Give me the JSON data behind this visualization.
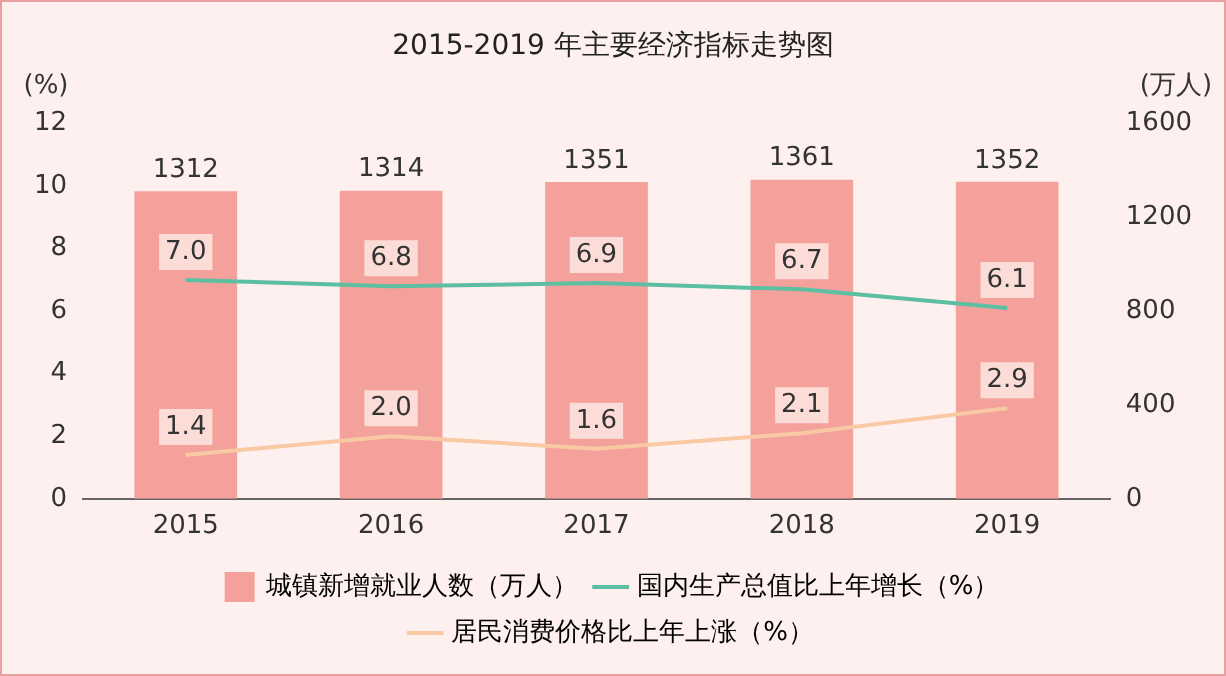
{
  "chart_data": {
    "type": "bar",
    "title": "2015-2019 年主要经济指标走势图",
    "ylabel": "(%)",
    "y2label": "(万人)",
    "categories": [
      "2015",
      "2016",
      "2017",
      "2018",
      "2019"
    ],
    "series": [
      {
        "name": "城镇新增就业人数（万人）",
        "axis": "y2",
        "color": "#f4a09b",
        "values": [
          1312,
          1314,
          1351,
          1361,
          1352
        ]
      },
      {
        "name": "国内生产总值比上年增长（%）",
        "type": "line",
        "axis": "y",
        "color": "#5cbfa2",
        "values": [
          7.0,
          6.8,
          6.9,
          6.7,
          6.1
        ],
        "value_labels": [
          "7.0",
          "6.8",
          "6.9",
          "6.7",
          "6.1"
        ]
      },
      {
        "name": "居民消费价格比上年上涨（%）",
        "type": "line",
        "axis": "y",
        "color": "#f9c9a4",
        "values": [
          1.4,
          2.0,
          1.6,
          2.1,
          2.9
        ],
        "value_labels": [
          "1.4",
          "2.0",
          "1.6",
          "2.1",
          "2.9"
        ]
      }
    ],
    "ylim": [
      0,
      12
    ],
    "yticks": [
      0,
      2,
      4,
      6,
      8,
      10,
      12
    ],
    "y2lim": [
      0,
      1600
    ],
    "y2ticks": [
      0,
      400,
      800,
      1200,
      1600
    ],
    "data_labels": true,
    "grid": false,
    "legend": "bottom",
    "marker": "none",
    "line_style": "solid"
  }
}
